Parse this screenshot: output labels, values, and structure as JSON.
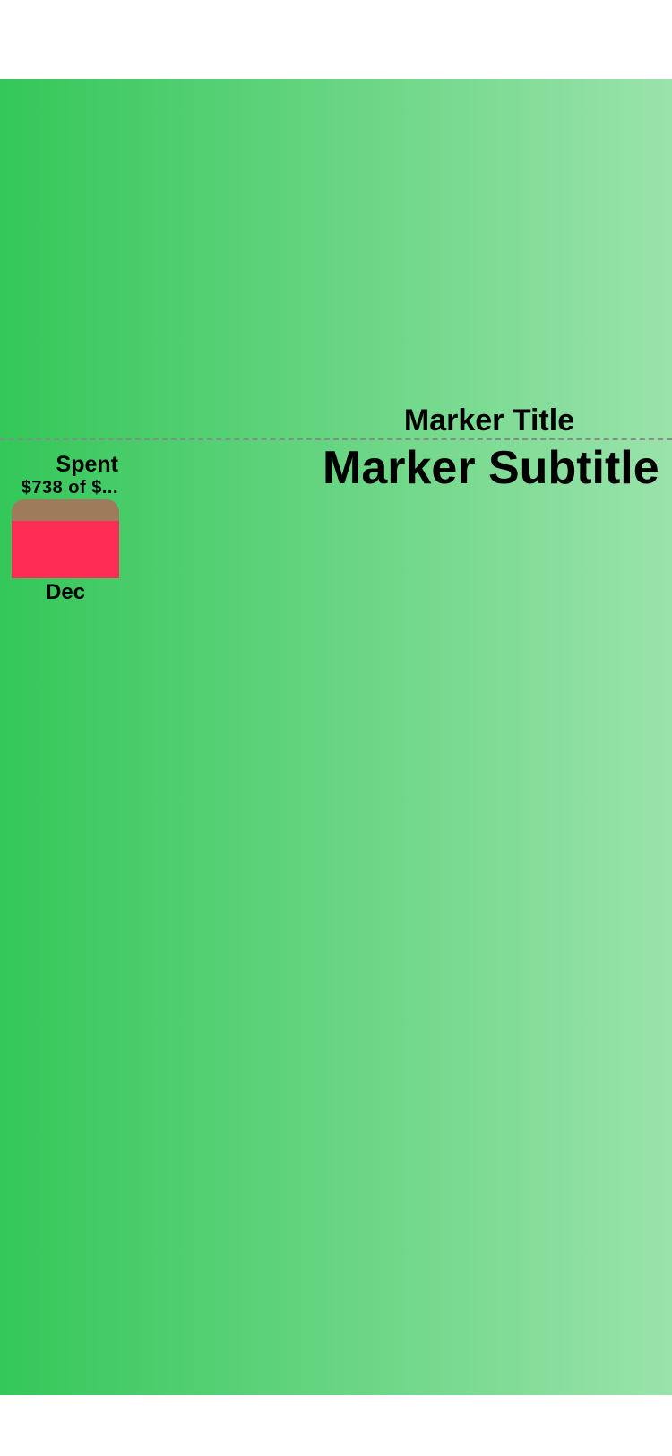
{
  "marker": {
    "title": "Marker Title",
    "subtitle": "Marker Subtitle"
  },
  "bar": {
    "title": "Spent",
    "value_text": "$738 of $...",
    "category": "Dec",
    "fill_fraction": 0.73
  },
  "colors": {
    "background_start": "#34c759",
    "background_end": "#9ae3ab",
    "bar_track": "#9d7b5b",
    "bar_fill": "#ff2d55",
    "marker_line": "#8a8a8a"
  }
}
